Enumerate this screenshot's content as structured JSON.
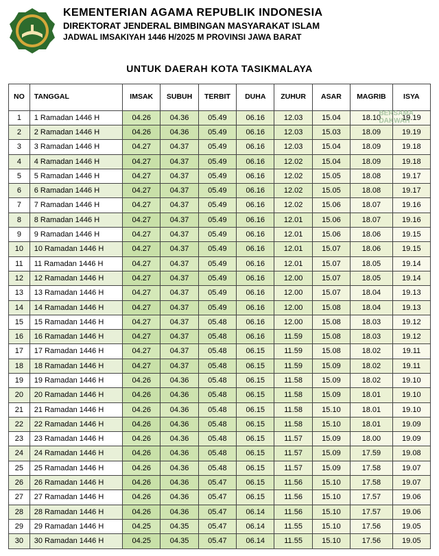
{
  "header": {
    "title1": "KEMENTERIAN AGAMA REPUBLIK INDONESIA",
    "title2": "DIREKTORAT JENDERAL BIMBINGAN MASYARAKAT ISLAM",
    "title3": "JADWAL IMSAKIYAH 1446 H/2025 M PROVINSI JAWA BARAT",
    "subtitle": "UNTUK DAERAH KOTA TASIKMALAYA"
  },
  "watermark": {
    "line1": "BERSAMA",
    "line2": "DAKWAH"
  },
  "logo_colors": {
    "outer": "#2d6b2d",
    "inner": "#d4a83a",
    "book": "#f4e4b0"
  },
  "columns": [
    "NO",
    "TANGGAL",
    "IMSAK",
    "SUBUH",
    "TERBIT",
    "DUHA",
    "ZUHUR",
    "ASAR",
    "MAGRIB",
    "ISYA"
  ],
  "column_widths": [
    "5%",
    "22%",
    "9%",
    "9%",
    "9%",
    "9%",
    "9%",
    "9%",
    "10%",
    "9%"
  ],
  "gradient_classes": [
    "g0",
    "g1",
    "g2",
    "g3",
    "g4",
    "g5",
    "g6",
    "g7"
  ],
  "rows": [
    {
      "no": 1,
      "tanggal": "1 Ramadan 1446 H",
      "v": [
        "04.26",
        "04.36",
        "05.49",
        "06.16",
        "12.03",
        "15.04",
        "18.10",
        "19.19"
      ]
    },
    {
      "no": 2,
      "tanggal": "2 Ramadan 1446 H",
      "v": [
        "04.26",
        "04.36",
        "05.49",
        "06.16",
        "12.03",
        "15.03",
        "18.09",
        "19.19"
      ]
    },
    {
      "no": 3,
      "tanggal": "3 Ramadan 1446 H",
      "v": [
        "04.27",
        "04.37",
        "05.49",
        "06.16",
        "12.03",
        "15.04",
        "18.09",
        "19.18"
      ]
    },
    {
      "no": 4,
      "tanggal": "4 Ramadan 1446 H",
      "v": [
        "04.27",
        "04.37",
        "05.49",
        "06.16",
        "12.02",
        "15.04",
        "18.09",
        "19.18"
      ]
    },
    {
      "no": 5,
      "tanggal": "5 Ramadan 1446 H",
      "v": [
        "04.27",
        "04.37",
        "05.49",
        "06.16",
        "12.02",
        "15.05",
        "18.08",
        "19.17"
      ]
    },
    {
      "no": 6,
      "tanggal": "6 Ramadan 1446 H",
      "v": [
        "04.27",
        "04.37",
        "05.49",
        "06.16",
        "12.02",
        "15.05",
        "18.08",
        "19.17"
      ]
    },
    {
      "no": 7,
      "tanggal": "7 Ramadan 1446 H",
      "v": [
        "04.27",
        "04.37",
        "05.49",
        "06.16",
        "12.02",
        "15.06",
        "18.07",
        "19.16"
      ]
    },
    {
      "no": 8,
      "tanggal": "8 Ramadan 1446 H",
      "v": [
        "04.27",
        "04.37",
        "05.49",
        "06.16",
        "12.01",
        "15.06",
        "18.07",
        "19.16"
      ]
    },
    {
      "no": 9,
      "tanggal": "9 Ramadan 1446 H",
      "v": [
        "04.27",
        "04.37",
        "05.49",
        "06.16",
        "12.01",
        "15.06",
        "18.06",
        "19.15"
      ]
    },
    {
      "no": 10,
      "tanggal": "10 Ramadan 1446 H",
      "v": [
        "04.27",
        "04.37",
        "05.49",
        "06.16",
        "12.01",
        "15.07",
        "18.06",
        "19.15"
      ]
    },
    {
      "no": 11,
      "tanggal": "11 Ramadan 1446 H",
      "v": [
        "04.27",
        "04.37",
        "05.49",
        "06.16",
        "12.01",
        "15.07",
        "18.05",
        "19.14"
      ]
    },
    {
      "no": 12,
      "tanggal": "12 Ramadan 1446 H",
      "v": [
        "04.27",
        "04.37",
        "05.49",
        "06.16",
        "12.00",
        "15.07",
        "18.05",
        "19.14"
      ]
    },
    {
      "no": 13,
      "tanggal": "13 Ramadan 1446 H",
      "v": [
        "04.27",
        "04.37",
        "05.49",
        "06.16",
        "12.00",
        "15.07",
        "18.04",
        "19.13"
      ]
    },
    {
      "no": 14,
      "tanggal": "14 Ramadan 1446 H",
      "v": [
        "04.27",
        "04.37",
        "05.49",
        "06.16",
        "12.00",
        "15.08",
        "18.04",
        "19.13"
      ]
    },
    {
      "no": 15,
      "tanggal": "15 Ramadan 1446 H",
      "v": [
        "04.27",
        "04.37",
        "05.48",
        "06.16",
        "12.00",
        "15.08",
        "18.03",
        "19.12"
      ]
    },
    {
      "no": 16,
      "tanggal": "16 Ramadan 1446 H",
      "v": [
        "04.27",
        "04.37",
        "05.48",
        "06.16",
        "11.59",
        "15.08",
        "18.03",
        "19.12"
      ]
    },
    {
      "no": 17,
      "tanggal": "17 Ramadan 1446 H",
      "v": [
        "04.27",
        "04.37",
        "05.48",
        "06.15",
        "11.59",
        "15.08",
        "18.02",
        "19.11"
      ]
    },
    {
      "no": 18,
      "tanggal": "18 Ramadan 1446 H",
      "v": [
        "04.27",
        "04.37",
        "05.48",
        "06.15",
        "11.59",
        "15.09",
        "18.02",
        "19.11"
      ]
    },
    {
      "no": 19,
      "tanggal": "19 Ramadan 1446 H",
      "v": [
        "04.26",
        "04.36",
        "05.48",
        "06.15",
        "11.58",
        "15.09",
        "18.02",
        "19.10"
      ]
    },
    {
      "no": 20,
      "tanggal": "20 Ramadan 1446 H",
      "v": [
        "04.26",
        "04.36",
        "05.48",
        "06.15",
        "11.58",
        "15.09",
        "18.01",
        "19.10"
      ]
    },
    {
      "no": 21,
      "tanggal": "21 Ramadan 1446 H",
      "v": [
        "04.26",
        "04.36",
        "05.48",
        "06.15",
        "11.58",
        "15.10",
        "18.01",
        "19.10"
      ]
    },
    {
      "no": 22,
      "tanggal": "22 Ramadan 1446 H",
      "v": [
        "04.26",
        "04.36",
        "05.48",
        "06.15",
        "11.58",
        "15.10",
        "18.01",
        "19.09"
      ]
    },
    {
      "no": 23,
      "tanggal": "23 Ramadan 1446 H",
      "v": [
        "04.26",
        "04.36",
        "05.48",
        "06.15",
        "11.57",
        "15.09",
        "18.00",
        "19.09"
      ]
    },
    {
      "no": 24,
      "tanggal": "24 Ramadan 1446 H",
      "v": [
        "04.26",
        "04.36",
        "05.48",
        "06.15",
        "11.57",
        "15.09",
        "17.59",
        "19.08"
      ]
    },
    {
      "no": 25,
      "tanggal": "25 Ramadan 1446 H",
      "v": [
        "04.26",
        "04.36",
        "05.48",
        "06.15",
        "11.57",
        "15.09",
        "17.58",
        "19.07"
      ]
    },
    {
      "no": 26,
      "tanggal": "26 Ramadan 1446 H",
      "v": [
        "04.26",
        "04.36",
        "05.47",
        "06.15",
        "11.56",
        "15.10",
        "17.58",
        "19.07"
      ]
    },
    {
      "no": 27,
      "tanggal": "27 Ramadan 1446 H",
      "v": [
        "04.26",
        "04.36",
        "05.47",
        "06.15",
        "11.56",
        "15.10",
        "17.57",
        "19.06"
      ]
    },
    {
      "no": 28,
      "tanggal": "28 Ramadan 1446 H",
      "v": [
        "04.26",
        "04.36",
        "05.47",
        "06.14",
        "11.56",
        "15.10",
        "17.57",
        "19.06"
      ]
    },
    {
      "no": 29,
      "tanggal": "29 Ramadan 1446 H",
      "v": [
        "04.25",
        "04.35",
        "05.47",
        "06.14",
        "11.55",
        "15.10",
        "17.56",
        "19.05"
      ]
    },
    {
      "no": 30,
      "tanggal": "30 Ramadan 1446 H",
      "v": [
        "04.25",
        "04.35",
        "05.47",
        "06.14",
        "11.55",
        "15.10",
        "17.56",
        "19.05"
      ]
    }
  ]
}
